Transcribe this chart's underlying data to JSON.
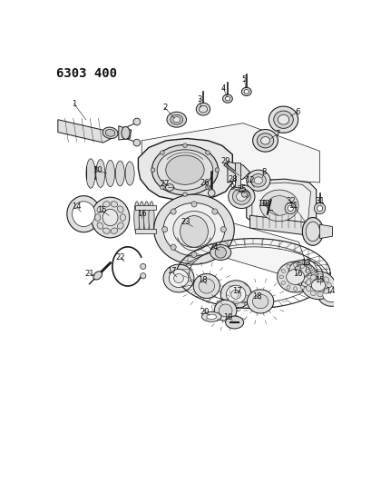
{
  "title": "6303 400",
  "bg_color": "#ffffff",
  "fig_width": 4.1,
  "fig_height": 5.33,
  "dpi": 100,
  "line_color": "#1a1a1a",
  "label_fontsize": 6.0,
  "label_color": "#111111",
  "title_fontsize": 10,
  "title_fontweight": "bold"
}
